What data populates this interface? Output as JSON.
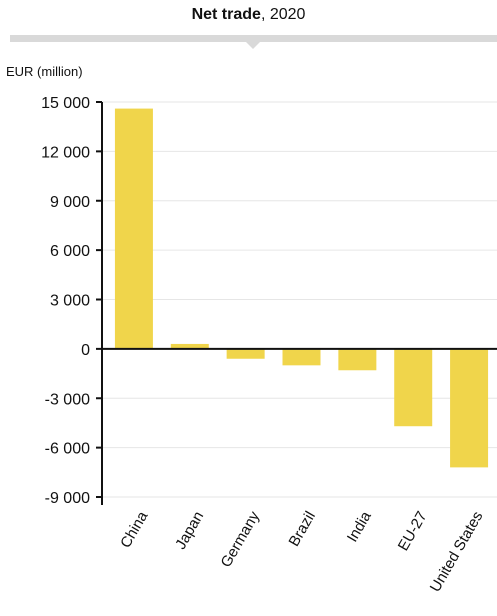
{
  "header": {
    "title_bold": "Net trade",
    "title_rest": ", 2020",
    "unit_label": "EUR (million)"
  },
  "chart_data": {
    "type": "bar",
    "title": "Net trade, 2020",
    "ylabel": "EUR (million)",
    "xlabel": "",
    "categories": [
      "China",
      "Japan",
      "Germany",
      "Brazil",
      "India",
      "EU-27",
      "United States"
    ],
    "values": [
      14600,
      300,
      -600,
      -1000,
      -1300,
      -4700,
      -7200
    ],
    "ylim": [
      -9000,
      15000
    ],
    "yticks": [
      15000,
      12000,
      9000,
      6000,
      3000,
      0,
      -3000,
      -6000,
      -9000
    ],
    "ytick_labels": [
      "15 000",
      "12 000",
      "9 000",
      "6 000",
      "3 000",
      "0",
      "-3 000",
      "-6 000",
      "-9 000"
    ],
    "bar_color": "#f0d54b",
    "grid": true,
    "grid_color": "#e6e6e6"
  }
}
